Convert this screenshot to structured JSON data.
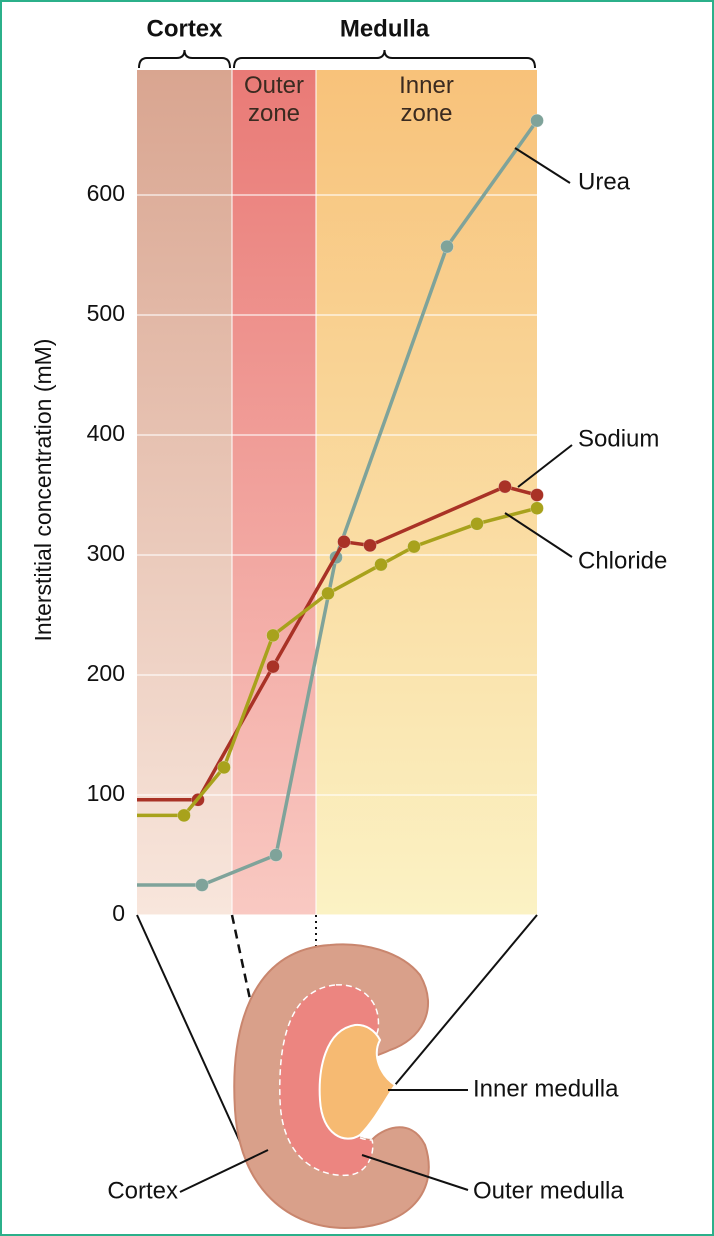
{
  "chart_data": {
    "type": "line",
    "ylabel": "Interstitial concentration (mM)",
    "xlim": [
      0,
      100
    ],
    "ylim": [
      0,
      700
    ],
    "yticks": [
      0,
      100,
      200,
      300,
      400,
      500,
      600
    ],
    "grid": true,
    "regions": [
      {
        "name": "Cortex",
        "xlim": [
          0,
          23.75
        ]
      },
      {
        "name": "Medulla",
        "xlim": [
          23.75,
          100
        ]
      }
    ],
    "bands": [
      {
        "xlim": [
          0,
          23.75
        ],
        "colors": [
          "#d9a590",
          "#f8e6dc"
        ]
      },
      {
        "name": "Outer zone",
        "xlim": [
          23.75,
          44.75
        ],
        "colors": [
          "#e97a76",
          "#f9c9c2"
        ]
      },
      {
        "name": "Inner zone",
        "xlim": [
          44.75,
          100
        ],
        "colors": [
          "#f8c27a",
          "#fbf2c4"
        ]
      }
    ],
    "series": [
      {
        "name": "Urea",
        "color": "#7fa39a",
        "x": [
          0,
          16.25,
          34.75,
          49.75,
          77.5,
          100
        ],
        "values": [
          25,
          25,
          50,
          298,
          557,
          662
        ]
      },
      {
        "name": "Sodium",
        "color": "#a93226",
        "x": [
          0,
          15.25,
          34,
          51.75,
          58.25,
          92,
          100
        ],
        "values": [
          96,
          96,
          207,
          311,
          308,
          357,
          350
        ]
      },
      {
        "name": "Chloride",
        "color": "#a8a21c",
        "x": [
          0,
          11.75,
          21.75,
          34,
          47.75,
          61,
          69.25,
          85,
          100
        ],
        "values": [
          83,
          83,
          123,
          233,
          268,
          292,
          307,
          326,
          339
        ]
      }
    ]
  },
  "diagram": {
    "labels": [
      "Inner medulla",
      "Cortex",
      "Outer medulla"
    ]
  }
}
